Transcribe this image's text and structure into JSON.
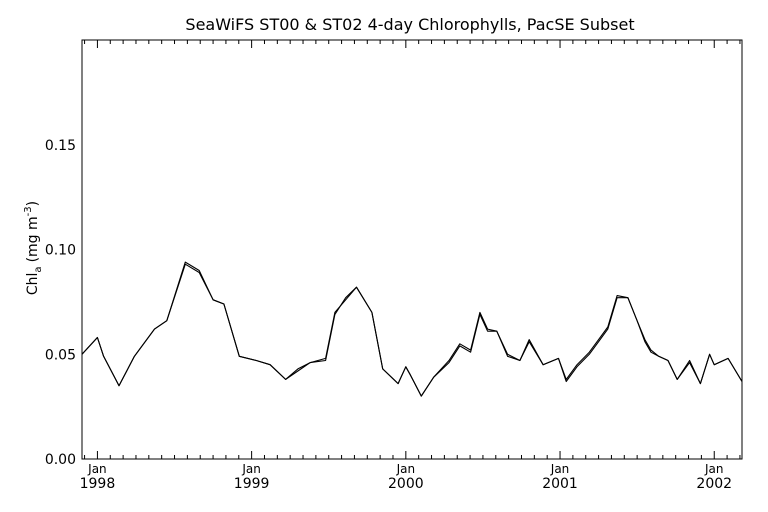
{
  "chart_data": {
    "type": "line",
    "title": "SeaWiFS ST00 & ST02 4-day Chlorophylls, PacSE Subset",
    "ylabel_main": "Chl",
    "ylabel_sub": "a",
    "ylabel_unit": "(mg m",
    "ylabel_exp": "-3",
    "ylabel_close": ")",
    "xlim": [
      1997.9,
      2002.18
    ],
    "ylim": [
      0.0,
      0.2
    ],
    "y_ticks": [
      {
        "value": 0.0,
        "label": "0.00"
      },
      {
        "value": 0.05,
        "label": "0.05"
      },
      {
        "value": 0.1,
        "label": "0.10"
      },
      {
        "value": 0.15,
        "label": "0.15"
      }
    ],
    "x_ticks": [
      {
        "value": 1998.0,
        "month": "Jan",
        "year": "1998"
      },
      {
        "value": 1999.0,
        "month": "Jan",
        "year": "1999"
      },
      {
        "value": 2000.0,
        "month": "Jan",
        "year": "2000"
      },
      {
        "value": 2001.0,
        "month": "Jan",
        "year": "2001"
      },
      {
        "value": 2002.0,
        "month": "Jan",
        "year": "2002"
      }
    ],
    "grid": false,
    "series": [
      {
        "x": [
          1997.9,
          1998.0,
          1998.04,
          1998.14,
          1998.24,
          1998.37,
          1998.45,
          1998.57,
          1998.66,
          1998.75,
          1998.82,
          1998.92,
          1999.03,
          1999.12,
          1999.22,
          1999.3,
          1999.38,
          1999.48,
          1999.54,
          1999.61,
          1999.68,
          1999.78,
          1999.85,
          1999.95,
          2000.0,
          2000.03,
          2000.1,
          2000.18,
          2000.28,
          2000.35,
          2000.42,
          2000.48,
          2000.53,
          2000.59,
          2000.66,
          2000.74,
          2000.8,
          2000.89,
          2000.99,
          2001.04,
          2001.11,
          2001.19,
          2001.25,
          2001.31,
          2001.37,
          2001.44,
          2001.5,
          2001.55,
          2001.59,
          2001.64,
          2001.7,
          2001.76,
          2001.84,
          2001.91,
          2001.97,
          2002.0,
          2002.09,
          2002.18
        ],
        "y": [
          0.05,
          0.058,
          0.049,
          0.035,
          0.049,
          0.062,
          0.066,
          0.094,
          0.09,
          0.076,
          0.074,
          0.049,
          0.047,
          0.045,
          0.038,
          0.043,
          0.046,
          0.048,
          0.07,
          0.076,
          0.082,
          0.07,
          0.043,
          0.036,
          0.044,
          0.04,
          0.03,
          0.039,
          0.047,
          0.055,
          0.052,
          0.07,
          0.062,
          0.061,
          0.05,
          0.047,
          0.057,
          0.045,
          0.048,
          0.037,
          0.044,
          0.05,
          0.056,
          0.062,
          0.077,
          0.077,
          0.066,
          0.057,
          0.052,
          0.049,
          0.047,
          0.038,
          0.047,
          0.036,
          0.05,
          0.045,
          0.048,
          0.037
        ]
      },
      {
        "x": [
          1997.9,
          1998.0,
          1998.04,
          1998.14,
          1998.24,
          1998.37,
          1998.45,
          1998.57,
          1998.66,
          1998.75,
          1998.82,
          1998.92,
          1999.03,
          1999.12,
          1999.22,
          1999.3,
          1999.38,
          1999.48,
          1999.54,
          1999.61,
          1999.68,
          1999.78,
          1999.85,
          1999.95,
          2000.0,
          2000.03,
          2000.1,
          2000.18,
          2000.28,
          2000.35,
          2000.42,
          2000.48,
          2000.53,
          2000.59,
          2000.66,
          2000.74,
          2000.8,
          2000.89,
          2000.99,
          2001.04,
          2001.11,
          2001.19,
          2001.25,
          2001.31,
          2001.37,
          2001.44,
          2001.5,
          2001.55,
          2001.59,
          2001.64,
          2001.7,
          2001.76,
          2001.84,
          2001.91,
          2001.97,
          2002.0,
          2002.09,
          2002.18
        ],
        "y": [
          0.05,
          0.058,
          0.049,
          0.035,
          0.049,
          0.062,
          0.066,
          0.093,
          0.089,
          0.076,
          0.074,
          0.049,
          0.047,
          0.045,
          0.038,
          0.042,
          0.046,
          0.047,
          0.069,
          0.077,
          0.082,
          0.07,
          0.043,
          0.036,
          0.044,
          0.04,
          0.03,
          0.039,
          0.046,
          0.054,
          0.051,
          0.069,
          0.061,
          0.061,
          0.049,
          0.047,
          0.056,
          0.045,
          0.048,
          0.038,
          0.045,
          0.051,
          0.057,
          0.063,
          0.078,
          0.077,
          0.066,
          0.056,
          0.051,
          0.049,
          0.047,
          0.038,
          0.046,
          0.036,
          0.05,
          0.045,
          0.048,
          0.037
        ]
      }
    ]
  }
}
